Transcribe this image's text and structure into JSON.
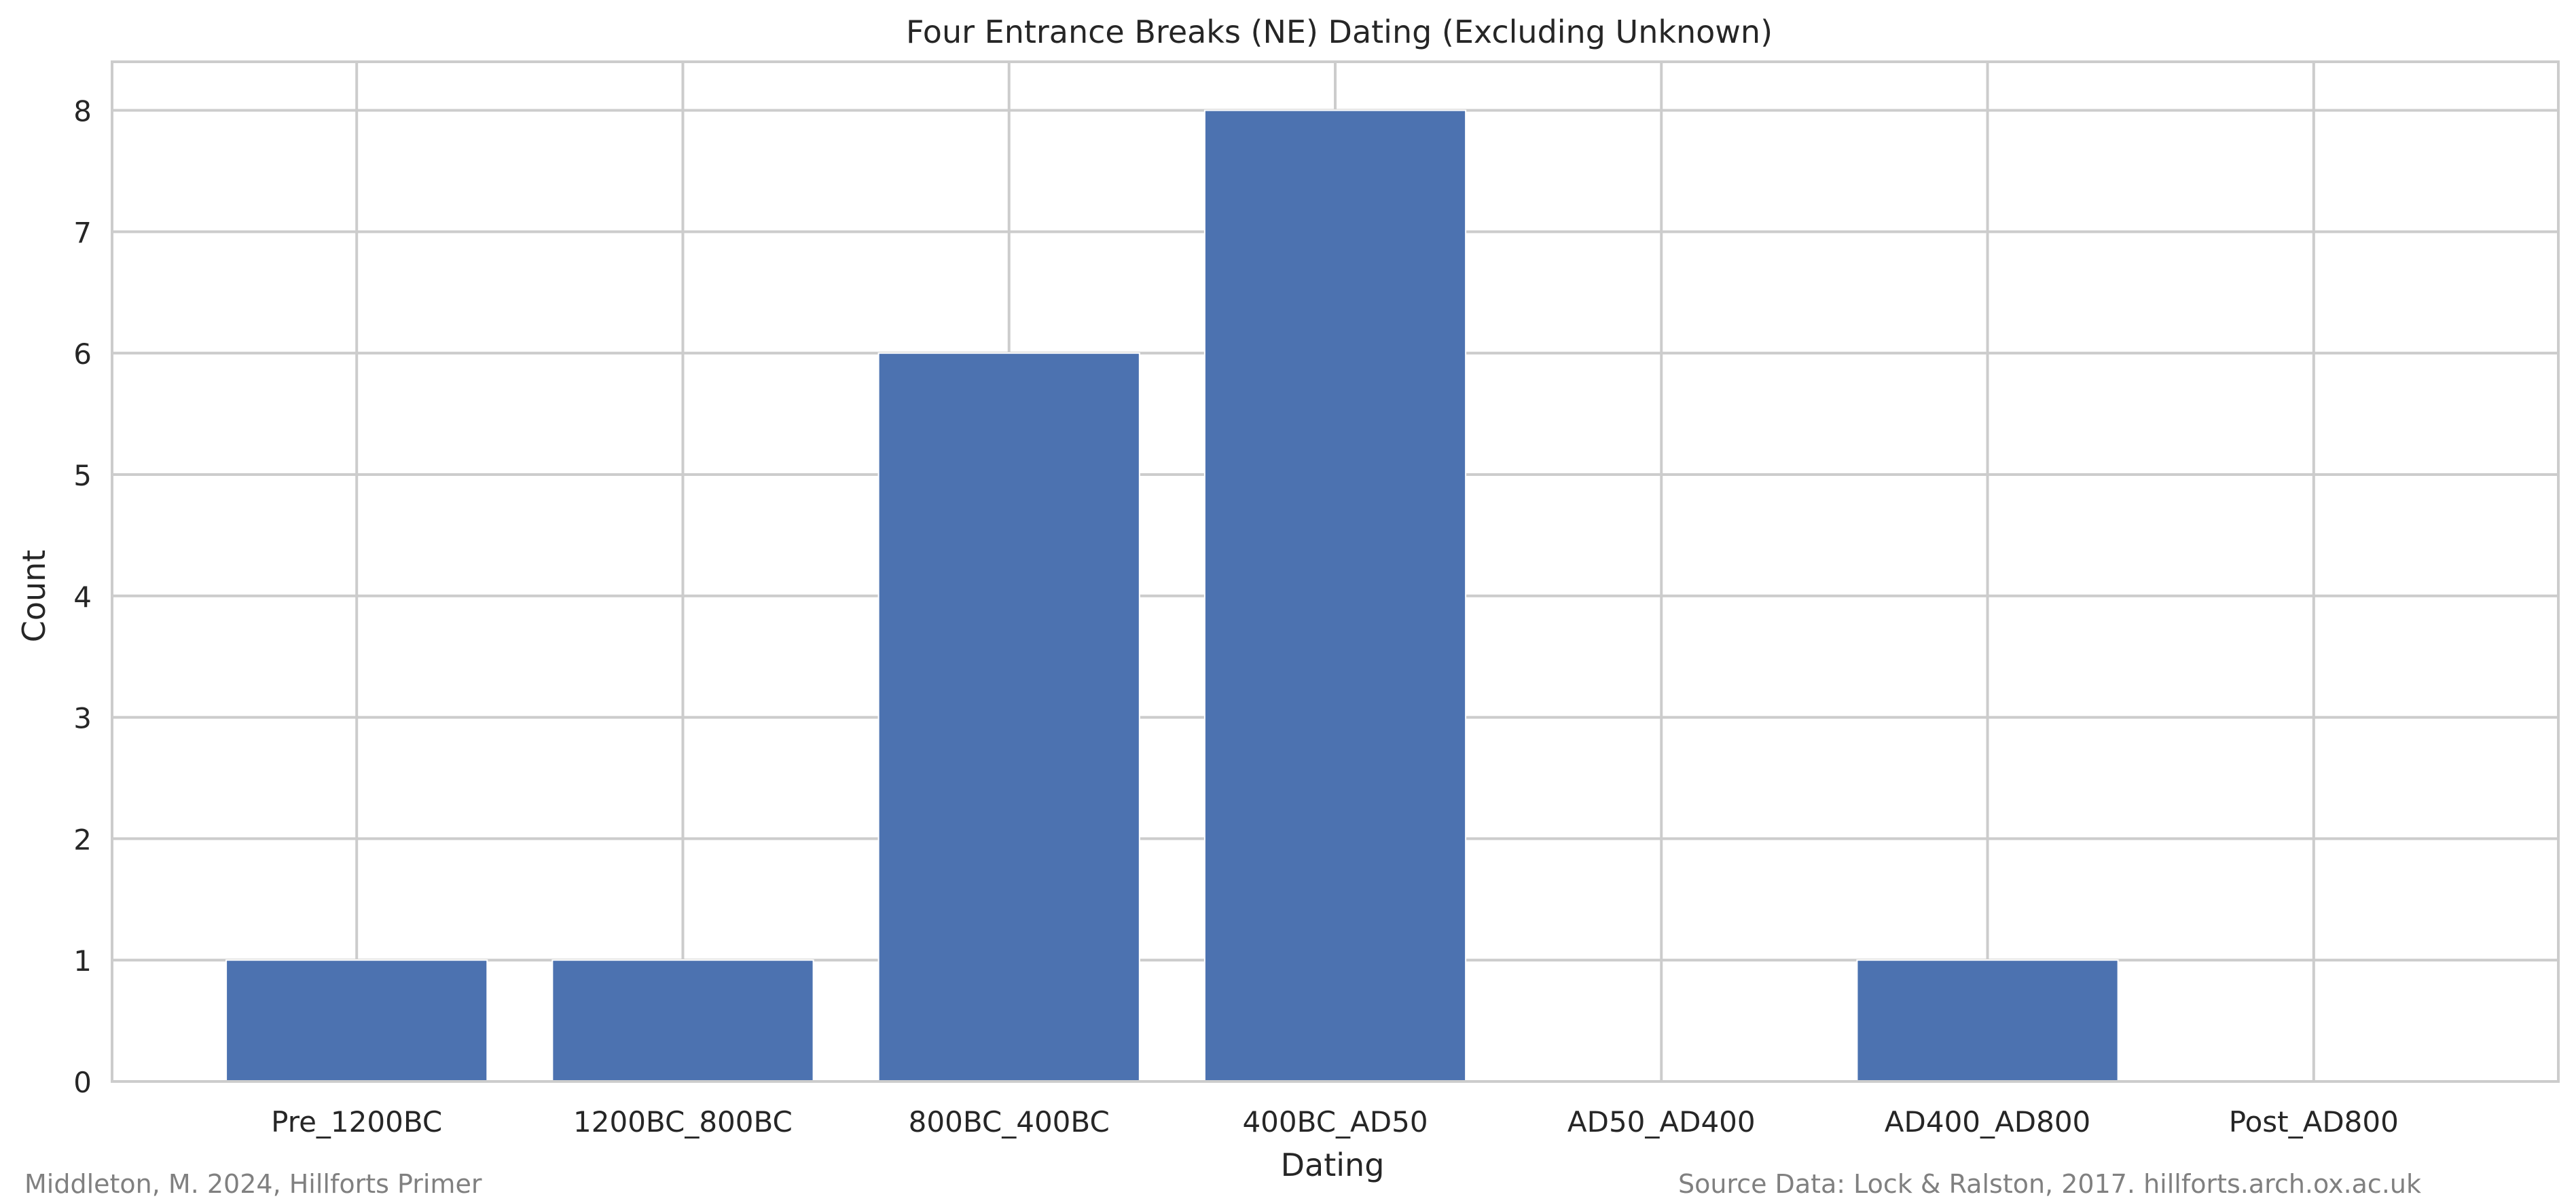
{
  "chart_data": {
    "type": "bar",
    "title": "Four Entrance Breaks (NE) Dating (Excluding Unknown)",
    "xlabel": "Dating",
    "ylabel": "Count",
    "categories": [
      "Pre_1200BC",
      "1200BC_800BC",
      "800BC_400BC",
      "400BC_AD50",
      "AD50_AD400",
      "AD400_AD800",
      "Post_AD800"
    ],
    "values": [
      1,
      1,
      6,
      8,
      0,
      1,
      0
    ],
    "ylim": [
      0,
      8.4
    ],
    "yticks": [
      0,
      1,
      2,
      3,
      4,
      5,
      6,
      7,
      8
    ],
    "grid": true,
    "colors": {
      "bar": "#4c72b0",
      "grid": "#cccccc",
      "frame": "#cccccc"
    }
  },
  "credits": {
    "left": "Middleton, M. 2024, Hillforts Primer",
    "right": "Source Data: Lock & Ralston, 2017. hillforts.arch.ox.ac.uk"
  }
}
